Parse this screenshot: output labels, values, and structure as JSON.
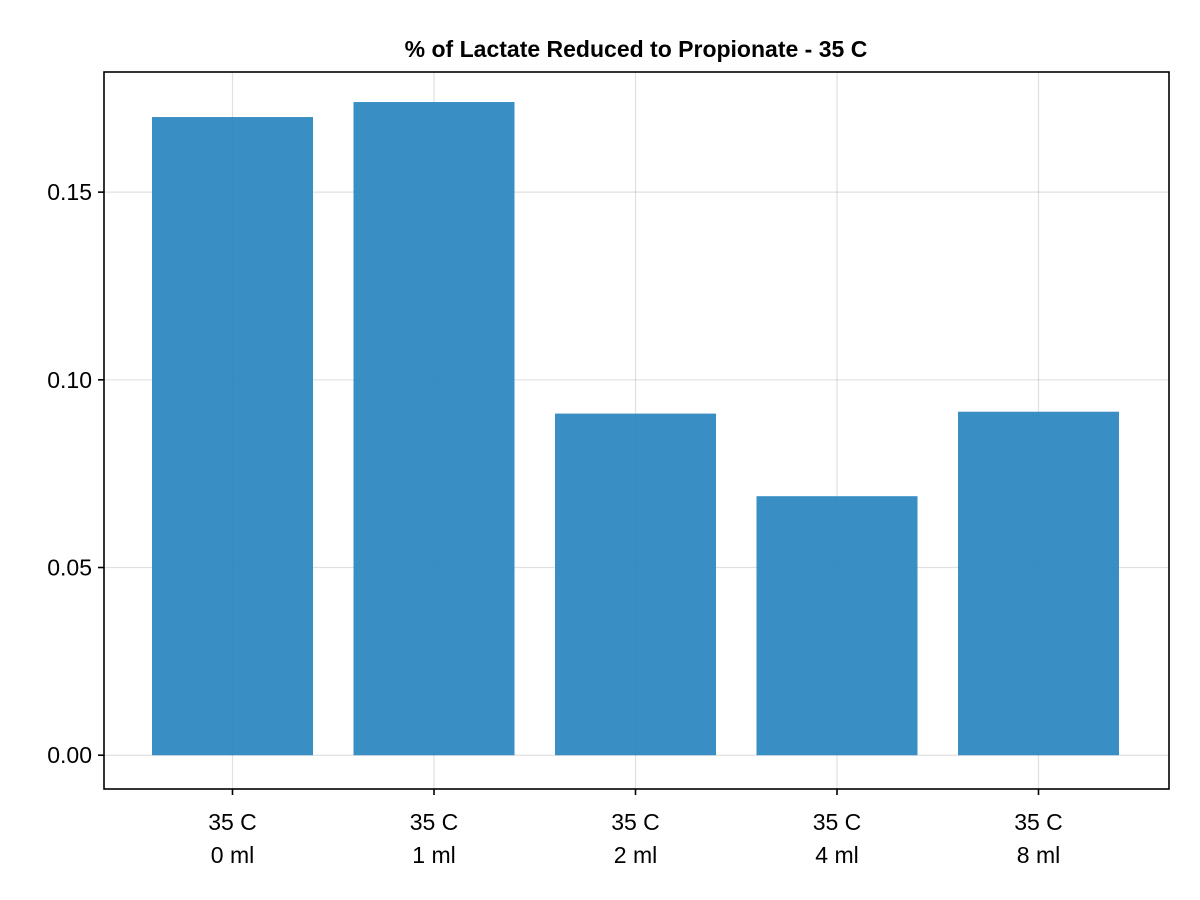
{
  "chart_data": {
    "type": "bar",
    "title": "% of Lactate Reduced to Propionate - 35 C",
    "xlabel": "",
    "ylabel": "",
    "categories": [
      [
        "35 C",
        "0 ml"
      ],
      [
        "35 C",
        "1 ml"
      ],
      [
        "35 C",
        "2 ml"
      ],
      [
        "35 C",
        "4 ml"
      ],
      [
        "35 C",
        "8 ml"
      ]
    ],
    "values": [
      0.17,
      0.174,
      0.091,
      0.069,
      0.0915
    ],
    "ylim": [
      -0.009,
      0.182
    ],
    "yticks": [
      0.0,
      0.05,
      0.1,
      0.15
    ],
    "ytick_labels": [
      "0.00",
      "0.05",
      "0.10",
      "0.15"
    ],
    "grid": true,
    "bar_color": "#2a86bf"
  }
}
